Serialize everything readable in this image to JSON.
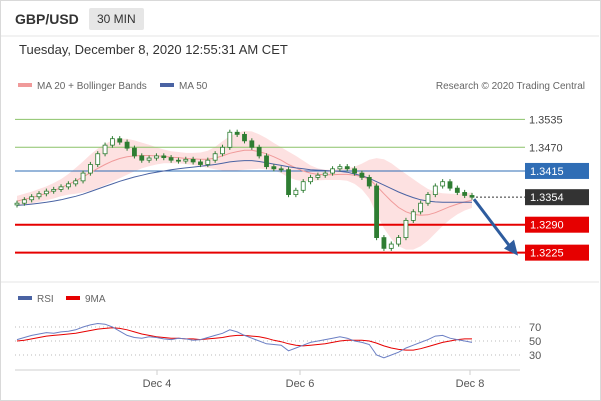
{
  "header": {
    "symbol": "GBP/USD",
    "timeframe": "30 MIN"
  },
  "datetime": "Tuesday, December 8, 2020 12:55:31 AM CET",
  "legend": {
    "bollinger": "MA 20 + Bollinger Bands",
    "ma50": "MA 50",
    "credit": "Research © 2020 Trading Central"
  },
  "rsi_legend": {
    "rsi": "RSI",
    "ma9": "9MA"
  },
  "colors": {
    "bollinger_fill": "#fde1e1",
    "ma20": "#f09a9a",
    "ma50": "#4a63a3",
    "resistance": "#8cc269",
    "pivot": "#2f6db5",
    "support": "#e60000",
    "arrow": "#2e5c9e",
    "candle": "#2e7d32",
    "current": "#333333"
  },
  "chart_data": [
    {
      "type": "line",
      "title": "GBP/USD 30 MIN",
      "x_ticks": [
        "Dec 4",
        "Dec 6",
        "Dec 8"
      ],
      "ylim": [
        1.318,
        1.358
      ],
      "levels": [
        {
          "label": "1.3535",
          "value": 1.3535,
          "kind": "resistance"
        },
        {
          "label": "1.3470",
          "value": 1.347,
          "kind": "resistance"
        },
        {
          "label": "1.3415",
          "value": 1.3415,
          "kind": "pivot"
        },
        {
          "label": "1.3354",
          "value": 1.3354,
          "kind": "current"
        },
        {
          "label": "1.3290",
          "value": 1.329,
          "kind": "support"
        },
        {
          "label": "1.3225",
          "value": 1.3225,
          "kind": "support"
        }
      ],
      "price": [
        1.334,
        1.3348,
        1.3355,
        1.3362,
        1.3368,
        1.3372,
        1.3378,
        1.3385,
        1.3392,
        1.341,
        1.343,
        1.3455,
        1.3475,
        1.349,
        1.3482,
        1.3468,
        1.345,
        1.344,
        1.3445,
        1.345,
        1.3446,
        1.344,
        1.3438,
        1.3442,
        1.3436,
        1.343,
        1.344,
        1.3455,
        1.347,
        1.3505,
        1.35,
        1.3485,
        1.347,
        1.345,
        1.3425,
        1.342,
        1.3418,
        1.336,
        1.337,
        1.339,
        1.34,
        1.3405,
        1.341,
        1.342,
        1.3425,
        1.342,
        1.341,
        1.34,
        1.338,
        1.326,
        1.3235,
        1.3245,
        1.326,
        1.33,
        1.332,
        1.334,
        1.336,
        1.338,
        1.339,
        1.3375,
        1.3365,
        1.3358,
        1.3354
      ],
      "ma20": [
        1.3345,
        1.3349,
        1.3353,
        1.3358,
        1.3363,
        1.3369,
        1.3376,
        1.3384,
        1.3392,
        1.3401,
        1.3411,
        1.3421,
        1.343,
        1.3438,
        1.3444,
        1.3448,
        1.345,
        1.3451,
        1.3451,
        1.345,
        1.3449,
        1.3447,
        1.3446,
        1.3444,
        1.3443,
        1.3442,
        1.3442,
        1.3445,
        1.345,
        1.3456,
        1.346,
        1.3463,
        1.3463,
        1.346,
        1.3455,
        1.3448,
        1.344,
        1.343,
        1.3422,
        1.3415,
        1.341,
        1.3407,
        1.3406,
        1.3406,
        1.3407,
        1.3407,
        1.3405,
        1.3402,
        1.3396,
        1.338,
        1.3362,
        1.3345,
        1.333,
        1.332,
        1.3314,
        1.3312,
        1.3313,
        1.3318,
        1.3325,
        1.3332,
        1.3338,
        1.3343,
        1.3347
      ],
      "band_width": [
        0.0012,
        0.0013,
        0.0014,
        0.0015,
        0.0016,
        0.0018,
        0.002,
        0.0024,
        0.003,
        0.0036,
        0.0042,
        0.0046,
        0.0048,
        0.0048,
        0.0046,
        0.0042,
        0.0036,
        0.003,
        0.0025,
        0.002,
        0.0016,
        0.0014,
        0.0013,
        0.0013,
        0.0014,
        0.0016,
        0.002,
        0.0026,
        0.0034,
        0.004,
        0.0044,
        0.0045,
        0.0044,
        0.004,
        0.0036,
        0.0032,
        0.003,
        0.003,
        0.0028,
        0.0024,
        0.0018,
        0.0014,
        0.0012,
        0.0012,
        0.0013,
        0.0015,
        0.002,
        0.003,
        0.0045,
        0.0065,
        0.008,
        0.0088,
        0.009,
        0.0088,
        0.0082,
        0.0072,
        0.006,
        0.0048,
        0.0038,
        0.003,
        0.0024,
        0.002,
        0.0018
      ],
      "ma50": [
        1.3335,
        1.3336,
        1.3338,
        1.334,
        1.3342,
        1.3345,
        1.3348,
        1.3352,
        1.3356,
        1.3361,
        1.3367,
        1.3373,
        1.3379,
        1.3385,
        1.3391,
        1.3396,
        1.3401,
        1.3405,
        1.3409,
        1.3412,
        1.3415,
        1.3418,
        1.342,
        1.3422,
        1.3424,
        1.3426,
        1.3428,
        1.343,
        1.3433,
        1.3436,
        1.3438,
        1.3439,
        1.3439,
        1.3437,
        1.3434,
        1.3431,
        1.3428,
        1.3425,
        1.3422,
        1.342,
        1.3418,
        1.3417,
        1.3416,
        1.3415,
        1.3414,
        1.3412,
        1.3408,
        1.3404,
        1.3398,
        1.339,
        1.3382,
        1.3374,
        1.3366,
        1.3359,
        1.3353,
        1.3348,
        1.3345,
        1.3343,
        1.3342,
        1.3342,
        1.3342,
        1.3342,
        1.3342
      ]
    },
    {
      "type": "line",
      "title": "RSI",
      "y_ticks": [
        "70",
        "50",
        "30"
      ],
      "ylim": [
        20,
        80
      ],
      "rsi": [
        52,
        55,
        58,
        60,
        62,
        61,
        63,
        64,
        66,
        70,
        73,
        75,
        74,
        70,
        64,
        58,
        55,
        54,
        56,
        55,
        53,
        52,
        54,
        53,
        51,
        52,
        55,
        58,
        61,
        66,
        63,
        58,
        54,
        50,
        46,
        45,
        44,
        36,
        40,
        44,
        48,
        50,
        52,
        54,
        56,
        54,
        50,
        48,
        45,
        30,
        26,
        30,
        34,
        40,
        44,
        48,
        52,
        57,
        58,
        54,
        52,
        50,
        48
      ],
      "ma9": [
        50,
        51,
        53,
        55,
        57,
        58,
        59,
        60,
        61,
        63,
        65,
        67,
        68,
        69,
        68,
        66,
        63,
        60,
        58,
        56,
        55,
        54,
        54,
        53,
        53,
        52,
        53,
        54,
        55,
        57,
        58,
        58,
        57,
        56,
        54,
        51,
        49,
        46,
        44,
        43,
        44,
        45,
        46,
        48,
        50,
        51,
        51,
        51,
        50,
        47,
        43,
        40,
        38,
        37,
        37,
        39,
        42,
        45,
        48,
        50,
        52,
        53,
        53
      ]
    }
  ]
}
